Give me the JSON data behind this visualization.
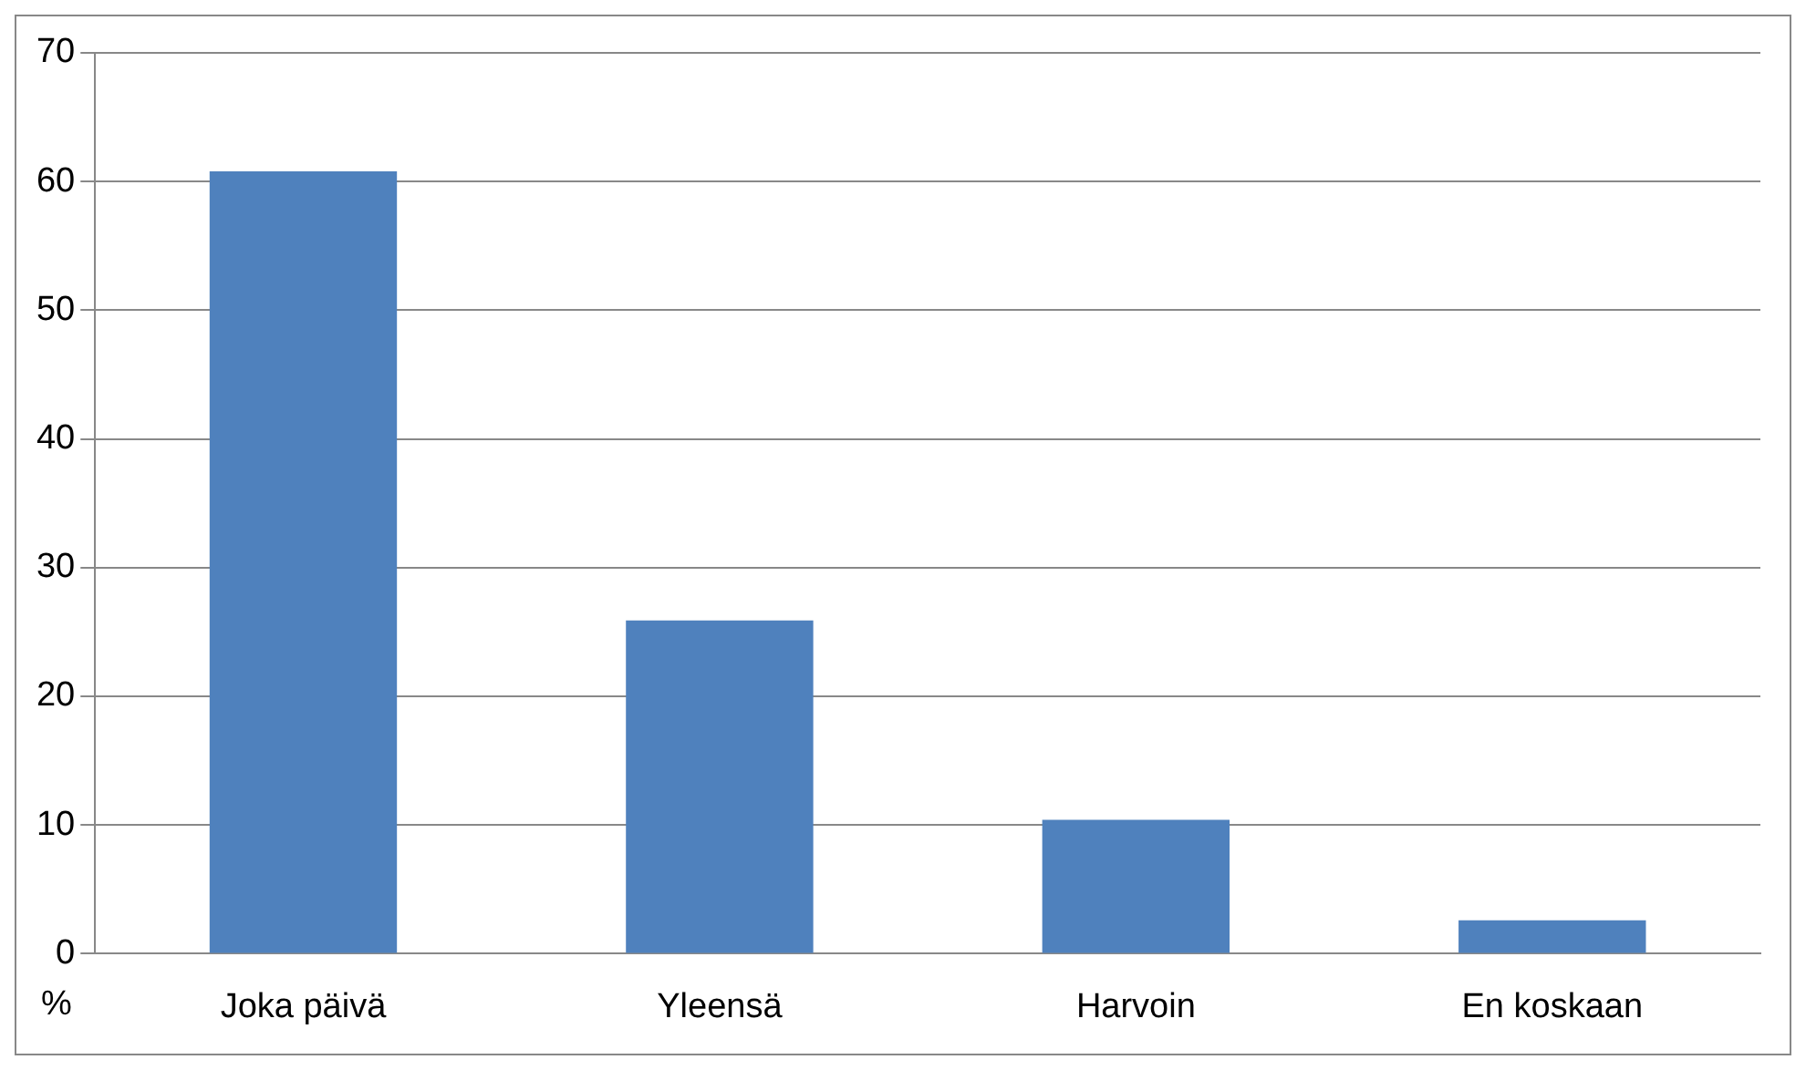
{
  "chart_data": {
    "type": "bar",
    "ylabel": "%",
    "categories": [
      "Joka päivä",
      "Yleensä",
      "Harvoin",
      "En koskaan"
    ],
    "values": [
      60.8,
      25.9,
      10.4,
      2.6
    ],
    "color": "#4f81bd",
    "ylim": [
      0,
      70
    ],
    "yticks": [
      0,
      10,
      20,
      30,
      40,
      50,
      60,
      70
    ],
    "grid": "y",
    "legend": false
  }
}
